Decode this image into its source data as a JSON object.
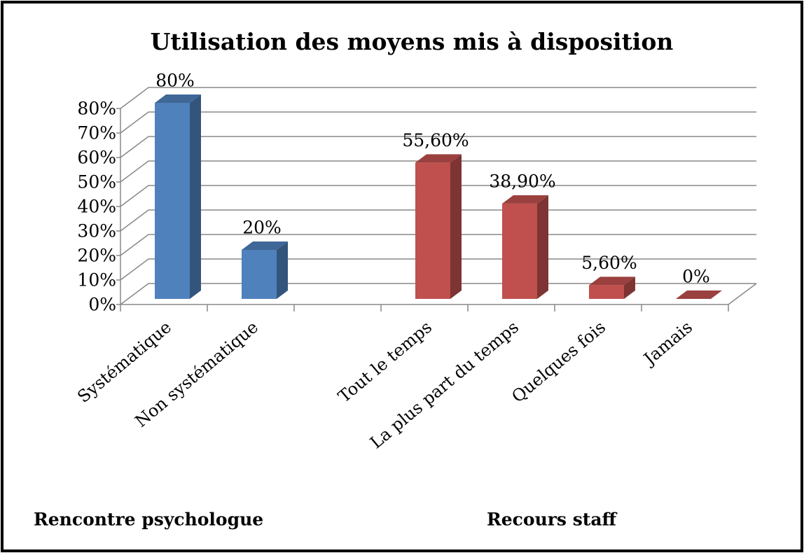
{
  "chart_data": {
    "type": "bar3d",
    "title": "Utilisation des moyens mis à disposition",
    "categories": [
      "Systématique",
      "Non systématique",
      null,
      "Tout le temps",
      "La plus part du temps",
      "Quelques fois",
      "Jamais"
    ],
    "series": [
      {
        "name": "Rencontre psychologue",
        "color": "#4f81bd",
        "values": [
          80,
          20,
          null,
          null,
          null,
          null,
          null
        ],
        "value_labels": [
          "80%",
          "20%",
          null,
          null,
          null,
          null,
          null
        ]
      },
      {
        "name": "Recours staff",
        "color": "#c0504d",
        "values": [
          null,
          null,
          null,
          55.6,
          38.9,
          5.6,
          0
        ],
        "value_labels": [
          null,
          null,
          null,
          "55,60%",
          "38,90%",
          "5,60%",
          "0%"
        ]
      }
    ],
    "ylim": [
      0,
      80
    ],
    "yticks": [
      {
        "value": 0,
        "label": "0%"
      },
      {
        "value": 10,
        "label": "10%"
      },
      {
        "value": 20,
        "label": "20%"
      },
      {
        "value": 30,
        "label": "30%"
      },
      {
        "value": 40,
        "label": "40%"
      },
      {
        "value": 50,
        "label": "50%"
      },
      {
        "value": 60,
        "label": "60%"
      },
      {
        "value": 70,
        "label": "70%"
      },
      {
        "value": 80,
        "label": "80%"
      }
    ],
    "grid": true
  }
}
